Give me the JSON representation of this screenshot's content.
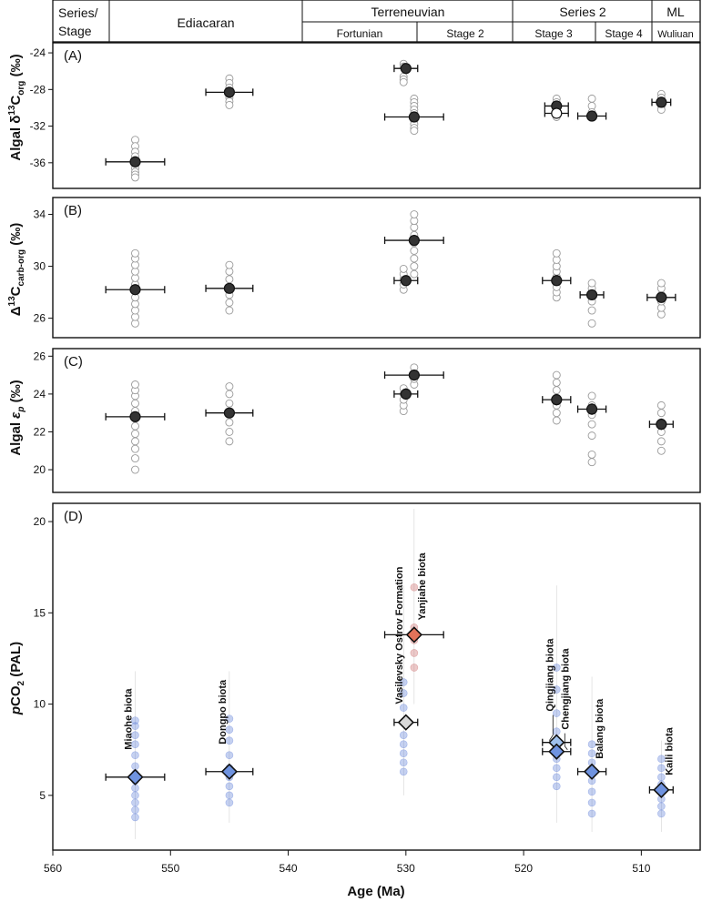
{
  "header": {
    "row1": [
      {
        "label": "Series/",
        "x0": 560,
        "x1": 555.5
      },
      {
        "label": "Ediacaran",
        "x0": 555.5,
        "x1": 538.8
      },
      {
        "label": "Terreneuvian",
        "x0": 538.8,
        "x1": 521
      },
      {
        "label": "Series 2",
        "x0": 521,
        "x1": 509
      },
      {
        "label": "ML",
        "x0": 509,
        "x1": 505
      }
    ],
    "row1_sub": "Stage",
    "row2": [
      {
        "label": "Fortunian",
        "x0": 538.8,
        "x1": 529
      },
      {
        "label": "Stage 2",
        "x0": 529,
        "x1": 521
      },
      {
        "label": "Stage 3",
        "x0": 521,
        "x1": 514
      },
      {
        "label": "Stage 4",
        "x0": 514,
        "x1": 509
      },
      {
        "label": "Wuliuan",
        "x0": 509,
        "x1": 505
      }
    ]
  },
  "x_axis": {
    "label": "Age (Ma)",
    "range": [
      560,
      505
    ],
    "ticks": [
      560,
      550,
      540,
      530,
      520,
      510
    ]
  },
  "chart_data": [
    {
      "panel": "(A)",
      "type": "scatter",
      "ylabel": "Algal δ13Corg (‰)",
      "ylim": [
        -38.8,
        -22.9
      ],
      "yticks": [
        -24,
        -28,
        -32,
        -36
      ],
      "raw_points": [
        {
          "x": 553,
          "ys": [
            -33.5,
            -34.2,
            -34.8,
            -35.3,
            -35.7,
            -36.2,
            -36.6,
            -37.0,
            -37.3,
            -37.6
          ]
        },
        {
          "x": 545,
          "ys": [
            -26.8,
            -27.3,
            -27.8,
            -28.4,
            -28.9,
            -29.3,
            -29.7
          ]
        },
        {
          "x": 530.2,
          "ys": [
            -25.2,
            -25.5,
            -26.6,
            -26.9,
            -27.2
          ]
        },
        {
          "x": 529.3,
          "ys": [
            -29.0,
            -29.4,
            -29.8,
            -30.2,
            -30.6,
            -31.0,
            -31.4,
            -31.8,
            -32.2,
            -32.5
          ]
        },
        {
          "x": 517.2,
          "ys": [
            -29.0,
            -29.4,
            -29.8,
            -30.2,
            -30.6,
            -31.0
          ]
        },
        {
          "x": 514.2,
          "ys": [
            -29.0,
            -29.8,
            -30.5,
            -31.0
          ]
        },
        {
          "x": 508.3,
          "ys": [
            -28.5,
            -28.9,
            -29.3,
            -29.8,
            -30.2
          ]
        }
      ],
      "means": [
        {
          "x": 553,
          "y": -35.9,
          "xerr": 2.5,
          "yerr": 0,
          "fill": "#333333"
        },
        {
          "x": 545,
          "y": -28.3,
          "xerr": 2.0,
          "yerr": 0,
          "fill": "#333333"
        },
        {
          "x": 530,
          "y": -25.7,
          "xerr": 1.0,
          "yerr": 0.3,
          "fill": "#333333"
        },
        {
          "x": 529.3,
          "y": -31.0,
          "xerr": 2.5,
          "yerr": 0,
          "fill": "#333333"
        },
        {
          "x": 517.2,
          "y": -29.8,
          "xerr": 1.0,
          "yerr": 0.3,
          "fill": "#333333"
        },
        {
          "x": 517.2,
          "y": -30.6,
          "xerr": 1.0,
          "yerr": 0,
          "fill": "#ffffff"
        },
        {
          "x": 514.2,
          "y": -30.9,
          "xerr": 1.2,
          "yerr": 0.3,
          "fill": "#333333"
        },
        {
          "x": 508.3,
          "y": -29.4,
          "xerr": 0.8,
          "yerr": 0.3,
          "fill": "#333333"
        }
      ]
    },
    {
      "panel": "(B)",
      "type": "scatter",
      "ylabel": "Δ13Ccarb-org (‰)",
      "ylim": [
        24.5,
        35.3
      ],
      "yticks": [
        34,
        30,
        26
      ],
      "raw_points": [
        {
          "x": 553,
          "ys": [
            25.6,
            26.1,
            26.6,
            27.1,
            27.6,
            28.1,
            28.6,
            29.1,
            29.6,
            30.1,
            30.6,
            31.0
          ]
        },
        {
          "x": 545,
          "ys": [
            26.6,
            27.2,
            27.8,
            28.4,
            29.0,
            29.6,
            30.1
          ]
        },
        {
          "x": 530.2,
          "ys": [
            28.2,
            28.6,
            29.0,
            29.4,
            29.8
          ]
        },
        {
          "x": 529.3,
          "ys": [
            29.4,
            30.0,
            30.6,
            31.2,
            31.8,
            32.4,
            33.0,
            33.5,
            34.0
          ]
        },
        {
          "x": 517.2,
          "ys": [
            27.6,
            28.0,
            28.4,
            28.8,
            29.2,
            29.6,
            30.0,
            30.5,
            31.0
          ]
        },
        {
          "x": 514.2,
          "ys": [
            25.6,
            26.6,
            27.3,
            27.8,
            28.3,
            28.7
          ]
        },
        {
          "x": 508.3,
          "ys": [
            26.3,
            26.8,
            27.3,
            27.8,
            28.3,
            28.7
          ]
        }
      ],
      "means": [
        {
          "x": 553,
          "y": 28.2,
          "xerr": 2.5,
          "yerr": 0,
          "fill": "#333333"
        },
        {
          "x": 545,
          "y": 28.3,
          "xerr": 2.0,
          "yerr": 0,
          "fill": "#333333"
        },
        {
          "x": 530,
          "y": 28.9,
          "xerr": 1.0,
          "yerr": 0.3,
          "fill": "#333333"
        },
        {
          "x": 529.3,
          "y": 32.0,
          "xerr": 2.5,
          "yerr": 0.3,
          "fill": "#333333"
        },
        {
          "x": 517.2,
          "y": 28.9,
          "xerr": 1.2,
          "yerr": 0.3,
          "fill": "#333333"
        },
        {
          "x": 514.2,
          "y": 27.8,
          "xerr": 1.0,
          "yerr": 0.3,
          "fill": "#333333"
        },
        {
          "x": 508.3,
          "y": 27.6,
          "xerr": 1.2,
          "yerr": 0.3,
          "fill": "#333333"
        }
      ]
    },
    {
      "panel": "(C)",
      "type": "scatter",
      "ylabel": "Algal εp (‰)",
      "ylim": [
        18.8,
        26.4
      ],
      "yticks": [
        26,
        24,
        22,
        20
      ],
      "raw_points": [
        {
          "x": 553,
          "ys": [
            20.0,
            20.6,
            21.1,
            21.5,
            21.9,
            22.3,
            22.7,
            23.1,
            23.5,
            23.9,
            24.2,
            24.5
          ]
        },
        {
          "x": 545,
          "ys": [
            21.5,
            22.0,
            22.5,
            23.0,
            23.5,
            24.0,
            24.4
          ]
        },
        {
          "x": 530.2,
          "ys": [
            23.1,
            23.4,
            23.7,
            24.0,
            24.3
          ]
        },
        {
          "x": 529.3,
          "ys": [
            24.5,
            24.8,
            25.1,
            25.4
          ]
        },
        {
          "x": 517.2,
          "ys": [
            22.6,
            23.0,
            23.4,
            23.8,
            24.2,
            24.6,
            25.0
          ]
        },
        {
          "x": 514.2,
          "ys": [
            20.4,
            20.8,
            21.8,
            22.4,
            22.9,
            23.4,
            23.9
          ]
        },
        {
          "x": 508.3,
          "ys": [
            21.0,
            21.5,
            22.0,
            22.5,
            23.0,
            23.4
          ]
        }
      ],
      "means": [
        {
          "x": 553,
          "y": 22.8,
          "xerr": 2.5,
          "yerr": 0,
          "fill": "#333333"
        },
        {
          "x": 545,
          "y": 23.0,
          "xerr": 2.0,
          "yerr": 0,
          "fill": "#333333"
        },
        {
          "x": 530,
          "y": 24.0,
          "xerr": 1.0,
          "yerr": 0.3,
          "fill": "#333333"
        },
        {
          "x": 529.3,
          "y": 25.0,
          "xerr": 2.5,
          "yerr": 0,
          "fill": "#333333"
        },
        {
          "x": 517.2,
          "y": 23.7,
          "xerr": 1.2,
          "yerr": 0.3,
          "fill": "#333333"
        },
        {
          "x": 514.2,
          "y": 23.2,
          "xerr": 1.2,
          "yerr": 0.3,
          "fill": "#333333"
        },
        {
          "x": 508.3,
          "y": 22.4,
          "xerr": 1.0,
          "yerr": 0.3,
          "fill": "#333333"
        }
      ]
    },
    {
      "panel": "(D)",
      "type": "scatter",
      "ylabel": "pCO2 (PAL)",
      "ylim": [
        2.0,
        21.0
      ],
      "yticks": [
        20,
        15,
        10,
        5
      ],
      "raw_points": [
        {
          "x": 553,
          "ys": [
            3.8,
            4.2,
            4.6,
            5.0,
            5.4,
            5.8,
            6.2,
            6.6,
            7.2,
            7.8,
            8.3,
            8.8,
            9.1
          ],
          "color": "#5a7bd6",
          "hi": 11.8,
          "lo": 2.6
        },
        {
          "x": 545,
          "ys": [
            4.6,
            5.0,
            5.5,
            6.0,
            6.5,
            7.2,
            8.0,
            8.6,
            9.2
          ],
          "color": "#5a7bd6",
          "hi": 11.8,
          "lo": 3.5
        },
        {
          "x": 530.2,
          "ys": [
            6.3,
            6.8,
            7.3,
            7.8,
            8.3,
            9.0,
            9.8,
            10.6,
            11.2
          ],
          "color": "#5a7bd6",
          "hi": 16.5,
          "lo": 5.0
        },
        {
          "x": 529.3,
          "ys": [
            12.0,
            12.8,
            13.5,
            14.2,
            16.4
          ],
          "color": "#c86464",
          "hi": 20.7,
          "lo": 10.0
        },
        {
          "x": 517.2,
          "ys": [
            5.5,
            6.0,
            6.5,
            7.0,
            7.5,
            8.0,
            8.5,
            9.5,
            10.8,
            12.0
          ],
          "color": "#5a7bd6",
          "hi": 16.5,
          "lo": 3.5
        },
        {
          "x": 514.2,
          "ys": [
            4.0,
            4.6,
            5.2,
            5.8,
            6.3,
            6.8,
            7.3,
            7.8
          ],
          "color": "#5a7bd6",
          "hi": 11.5,
          "lo": 3.0
        },
        {
          "x": 508.3,
          "ys": [
            4.0,
            4.4,
            4.8,
            5.2,
            5.6,
            6.0,
            6.5,
            7.0
          ],
          "color": "#5a7bd6",
          "hi": 8.0,
          "lo": 3.0
        }
      ],
      "means": [
        {
          "x": 553,
          "y": 6.0,
          "xerr": 2.5,
          "color": "#6f93e0",
          "label": "Miaohe biota"
        },
        {
          "x": 545,
          "y": 6.3,
          "xerr": 2.0,
          "color": "#6f93e0",
          "label": "Dongpo biota"
        },
        {
          "x": 530,
          "y": 9.0,
          "xerr": 1.0,
          "color": "#d8d8d8",
          "label": "Vasilevsky Ostrov Formation"
        },
        {
          "x": 529.3,
          "y": 13.8,
          "xerr": 2.5,
          "color": "#e2735a",
          "label": "Yanjiahe biota"
        },
        {
          "x": 517.2,
          "y": 7.9,
          "xerr": 1.2,
          "color": "#9fc1ee",
          "label": "Qingjiang biota"
        },
        {
          "x": 517.2,
          "y": 7.4,
          "xerr": 1.2,
          "color": "#6f93e0",
          "label": "Chengjiang biota"
        },
        {
          "x": 514.2,
          "y": 6.3,
          "xerr": 1.2,
          "color": "#6f93e0",
          "label": "Balang biota"
        },
        {
          "x": 508.3,
          "y": 5.3,
          "xerr": 1.0,
          "color": "#6f93e0",
          "label": "Kaili biota"
        }
      ]
    }
  ]
}
